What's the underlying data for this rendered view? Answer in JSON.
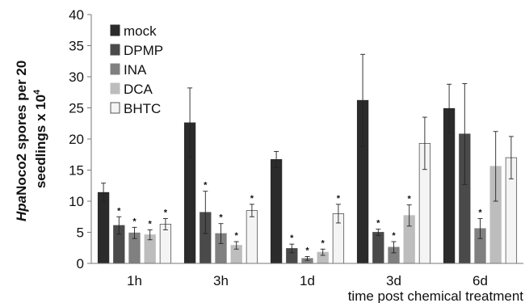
{
  "chart_data": {
    "type": "bar",
    "categories": [
      "1h",
      "3h",
      "1d",
      "3d",
      "6d"
    ],
    "xlabel": "time post chemical treatment",
    "ylabel_parts": [
      "Hpa",
      "Noco2 spores per 20",
      "seedlings x 10",
      "4"
    ],
    "ylim": [
      0,
      40
    ],
    "yticks": [
      0,
      5,
      10,
      15,
      20,
      25,
      30,
      35,
      40
    ],
    "legend_position": "top-left",
    "series": [
      {
        "name": "mock",
        "color": "#2b2b2b",
        "values": [
          11.4,
          22.6,
          16.7,
          26.2,
          24.9
        ],
        "errors": [
          1.5,
          5.6,
          1.3,
          7.4,
          3.9
        ],
        "significant": [
          false,
          false,
          false,
          false,
          false
        ]
      },
      {
        "name": "DPMP",
        "color": "#4a4a4a",
        "values": [
          6.1,
          8.2,
          2.4,
          5.0,
          20.8
        ],
        "errors": [
          1.4,
          3.4,
          0.7,
          0.5,
          8.1
        ],
        "significant": [
          true,
          true,
          true,
          true,
          false
        ]
      },
      {
        "name": "INA",
        "color": "#808080",
        "values": [
          4.9,
          4.8,
          0.8,
          2.6,
          5.6
        ],
        "errors": [
          0.9,
          1.6,
          0.3,
          0.9,
          1.6
        ],
        "significant": [
          true,
          true,
          true,
          true,
          true
        ]
      },
      {
        "name": "DCA",
        "color": "#bdbdbd",
        "values": [
          4.6,
          2.9,
          1.8,
          7.7,
          15.6
        ],
        "errors": [
          0.8,
          0.6,
          0.5,
          1.7,
          5.6
        ],
        "significant": [
          true,
          true,
          true,
          true,
          false
        ]
      },
      {
        "name": "BHTC",
        "color": "#f4f4f4",
        "values": [
          6.3,
          8.5,
          8.0,
          19.3,
          17.0
        ],
        "errors": [
          0.9,
          1.0,
          1.5,
          4.2,
          3.4
        ],
        "significant": [
          true,
          true,
          true,
          false,
          false
        ]
      }
    ],
    "significance_marker": "*"
  }
}
